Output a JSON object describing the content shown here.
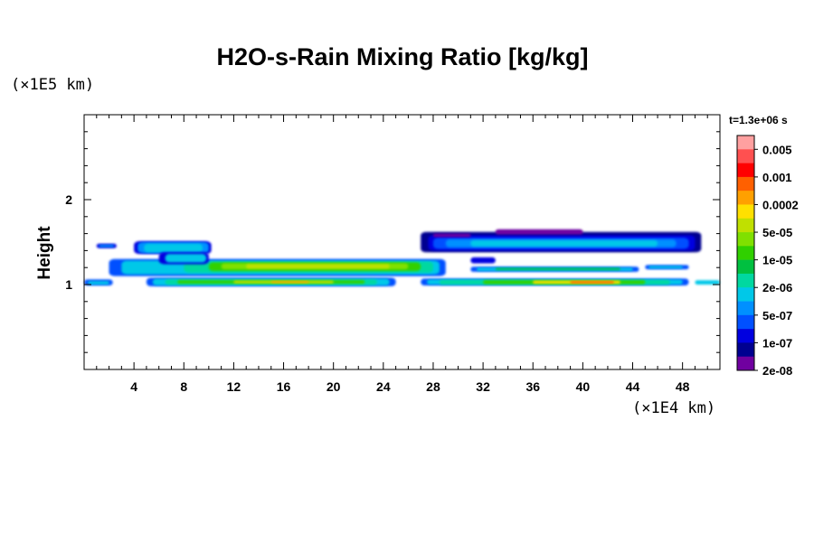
{
  "chart_data": {
    "type": "heatmap",
    "title": "H2O-s-Rain Mixing Ratio [kg/kg]",
    "ylabel": "Height",
    "x_unit": "(×1E4 km)",
    "y_unit": "(×1E5 km)",
    "time_label": "t=1.3e+06 s",
    "xlim": [
      0,
      51
    ],
    "ylim": [
      0,
      3
    ],
    "x_ticks": [
      4,
      8,
      12,
      16,
      20,
      24,
      28,
      32,
      36,
      40,
      44,
      48
    ],
    "y_ticks": [
      1,
      2
    ],
    "legend": {
      "labels": [
        "0.005",
        "0.001",
        "0.0002",
        "5e-05",
        "1e-05",
        "2e-06",
        "5e-07",
        "1e-07",
        "2e-08"
      ],
      "colors": [
        "#ffa0a0",
        "#ff5050",
        "#ff0000",
        "#ff6000",
        "#ffa000",
        "#ffe000",
        "#c0e000",
        "#80e000",
        "#30d000",
        "#00c040",
        "#00d8a0",
        "#00c8e8",
        "#0090ff",
        "#0050ff",
        "#0000e0",
        "#000090",
        "#7000a0"
      ]
    }
  }
}
